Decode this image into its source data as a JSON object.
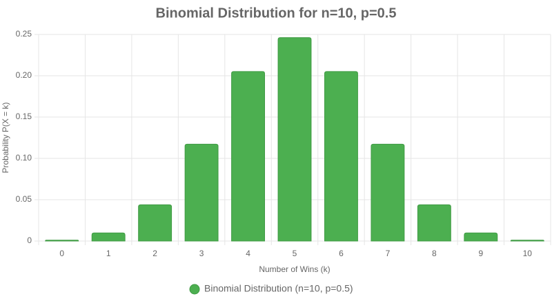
{
  "chart_data": {
    "type": "bar",
    "title": "Binomial Distribution for n=10, p=0.5",
    "x_label": "Number of Wins (k)",
    "y_label": "Probability P(X = k)",
    "categories": [
      "0",
      "1",
      "2",
      "3",
      "4",
      "5",
      "6",
      "7",
      "8",
      "9",
      "10"
    ],
    "series": [
      {
        "name": "Binomial Distribution (n=10, p=0.5)",
        "color": "#4caf50",
        "values": [
          0.001,
          0.0098,
          0.0439,
          0.1172,
          0.2051,
          0.2461,
          0.2051,
          0.1172,
          0.0439,
          0.0098,
          0.001
        ]
      }
    ],
    "ylim": [
      0,
      0.25
    ],
    "yticks": [
      0,
      0.05,
      {
        "value": 0.1,
        "label": "0.10"
      },
      0.15,
      {
        "value": 0.2,
        "label": "0.20"
      },
      0.25
    ],
    "grid": true,
    "legend": "bottom"
  }
}
